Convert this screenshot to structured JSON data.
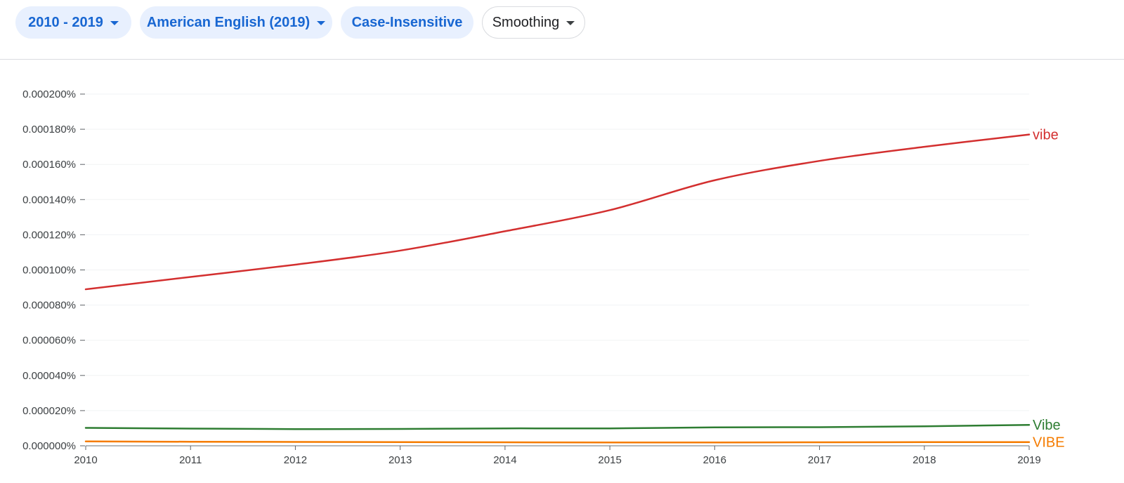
{
  "toolbar": {
    "year_range": "2010 - 2019",
    "corpus": "American English (2019)",
    "case": "Case-Insensitive",
    "smoothing": "Smoothing"
  },
  "colors": {
    "chip_bg": "#e8f0fe",
    "chip_text": "#1967d2",
    "vibe": "#d32f2f",
    "Vibe": "#2e7d32",
    "VIBE": "#f57c00"
  },
  "chart_data": {
    "type": "line",
    "title": "",
    "xlabel": "",
    "ylabel": "",
    "x": [
      2010,
      2011,
      2012,
      2013,
      2014,
      2015,
      2016,
      2017,
      2018,
      2019
    ],
    "xlim": [
      2010,
      2019
    ],
    "ylim": [
      0,
      0.0002
    ],
    "yticks": [
      0,
      2e-05,
      4e-05,
      6e-05,
      8e-05,
      0.0001,
      0.00012,
      0.00014,
      0.00016,
      0.00018,
      0.0002
    ],
    "ytick_labels": [
      "0.000000%",
      "0.000020%",
      "0.000040%",
      "0.000060%",
      "0.000080%",
      "0.000100%",
      "0.000120%",
      "0.000140%",
      "0.000160%",
      "0.000180%",
      "0.000200%"
    ],
    "xtick_labels": [
      "2010",
      "2011",
      "2012",
      "2013",
      "2014",
      "2015",
      "2016",
      "2017",
      "2018",
      "2019"
    ],
    "grid": true,
    "legend": "inline-right",
    "series": [
      {
        "name": "vibe",
        "color": "#d32f2f",
        "values": [
          8.9e-05,
          9.6e-05,
          0.000103,
          0.000111,
          0.000122,
          0.000134,
          0.000151,
          0.000162,
          0.00017,
          0.000177
        ]
      },
      {
        "name": "Vibe",
        "color": "#2e7d32",
        "values": [
          1.02e-05,
          9.8e-06,
          9.5e-06,
          9.6e-06,
          9.9e-06,
          9.9e-06,
          1.05e-05,
          1.06e-05,
          1.11e-05,
          1.19e-05
        ]
      },
      {
        "name": "VIBE",
        "color": "#f57c00",
        "values": [
          2.5e-06,
          2.3e-06,
          2.2e-06,
          2.1e-06,
          2e-06,
          1.9e-06,
          1.9e-06,
          2e-06,
          2.1e-06,
          2.1e-06
        ]
      }
    ]
  }
}
